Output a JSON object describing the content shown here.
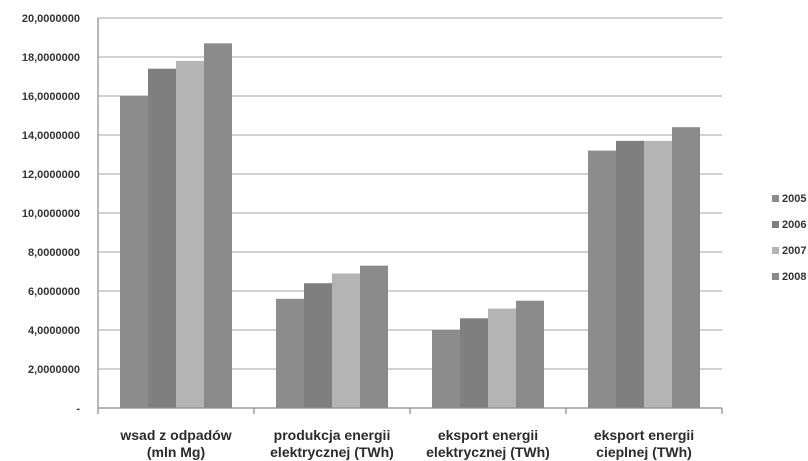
{
  "chart_data": {
    "type": "bar",
    "title": "",
    "xlabel": "",
    "ylabel": "",
    "ylim": [
      0,
      20
    ],
    "yticks": [
      {
        "value": 0,
        "label": "-"
      },
      {
        "value": 2,
        "label": "2,0000000"
      },
      {
        "value": 4,
        "label": "4,0000000"
      },
      {
        "value": 6,
        "label": "6,0000000"
      },
      {
        "value": 8,
        "label": "8,0000000"
      },
      {
        "value": 10,
        "label": "10,0000000"
      },
      {
        "value": 12,
        "label": "12,0000000"
      },
      {
        "value": 14,
        "label": "14,0000000"
      },
      {
        "value": 16,
        "label": "16,0000000"
      },
      {
        "value": 18,
        "label": "18,0000000"
      },
      {
        "value": 20,
        "label": "20,0000000"
      }
    ],
    "categories": [
      [
        "wsad z odpadów",
        "(mln Mg)"
      ],
      [
        "produkcja energii",
        "elektrycznej (TWh)"
      ],
      [
        "eksport energii",
        "elektrycznej (TWh)"
      ],
      [
        "eksport energii",
        "cieplnej (TWh)"
      ]
    ],
    "series": [
      {
        "name": "2005",
        "color": "#8c8c8c",
        "values": [
          16.0,
          5.6,
          4.0,
          13.2
        ]
      },
      {
        "name": "2006",
        "color": "#7f7f7f",
        "values": [
          17.4,
          6.4,
          4.6,
          13.7
        ]
      },
      {
        "name": "2007",
        "color": "#b4b4b4",
        "values": [
          17.8,
          6.9,
          5.1,
          13.7
        ]
      },
      {
        "name": "2008",
        "color": "#8a8a8a",
        "values": [
          18.7,
          7.3,
          5.5,
          14.4
        ]
      }
    ],
    "grid": true,
    "gridline_color": "#b8b8b8",
    "legend_position": "right"
  }
}
